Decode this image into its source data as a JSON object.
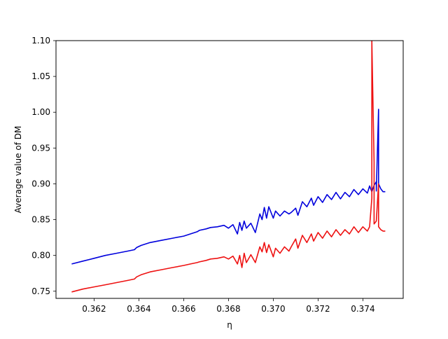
{
  "chart_data": {
    "type": "line",
    "title": "",
    "xlabel": "η",
    "ylabel": "Average value of DM",
    "xlim": [
      0.3603,
      0.3758
    ],
    "ylim": [
      0.74,
      1.1
    ],
    "grid": false,
    "legend": "none",
    "xticks": [
      "0.362",
      "0.364",
      "0.366",
      "0.368",
      "0.370",
      "0.372",
      "0.374"
    ],
    "xtick_values": [
      0.362,
      0.364,
      0.366,
      0.368,
      0.37,
      0.372,
      0.374
    ],
    "yticks": [
      "0.75",
      "0.80",
      "0.85",
      "0.90",
      "0.95",
      "1.00",
      "1.05",
      "1.10"
    ],
    "ytick_values": [
      0.75,
      0.8,
      0.85,
      0.9,
      0.95,
      1.0,
      1.05,
      1.1
    ],
    "series": [
      {
        "color": "#0000dd",
        "x": [
          0.361,
          0.3615,
          0.362,
          0.3625,
          0.363,
          0.3635,
          0.3638,
          0.3639,
          0.3641,
          0.3645,
          0.365,
          0.3655,
          0.366,
          0.3663,
          0.3666,
          0.3667,
          0.367,
          0.3672,
          0.3675,
          0.3678,
          0.368,
          0.3682,
          0.3684,
          0.3685,
          0.3686,
          0.3687,
          0.3688,
          0.369,
          0.3692,
          0.3694,
          0.3695,
          0.3696,
          0.3697,
          0.3698,
          0.37,
          0.3701,
          0.3703,
          0.3705,
          0.3707,
          0.3708,
          0.371,
          0.3711,
          0.3713,
          0.3715,
          0.3717,
          0.3718,
          0.372,
          0.3722,
          0.3724,
          0.3726,
          0.3728,
          0.373,
          0.3732,
          0.3734,
          0.3736,
          0.3738,
          0.374,
          0.3742,
          0.3743,
          0.3744,
          0.3745,
          0.3746,
          0.3746,
          0.3747,
          0.3747,
          0.3748,
          0.3749,
          0.375
        ],
        "y": [
          0.788,
          0.792,
          0.796,
          0.8,
          0.803,
          0.806,
          0.808,
          0.811,
          0.814,
          0.818,
          0.821,
          0.824,
          0.827,
          0.83,
          0.833,
          0.835,
          0.837,
          0.839,
          0.84,
          0.842,
          0.838,
          0.843,
          0.83,
          0.846,
          0.835,
          0.848,
          0.838,
          0.845,
          0.832,
          0.858,
          0.85,
          0.867,
          0.852,
          0.868,
          0.852,
          0.862,
          0.855,
          0.862,
          0.858,
          0.86,
          0.866,
          0.856,
          0.875,
          0.868,
          0.88,
          0.87,
          0.882,
          0.874,
          0.885,
          0.878,
          0.888,
          0.879,
          0.888,
          0.882,
          0.892,
          0.885,
          0.893,
          0.887,
          0.897,
          0.889,
          0.898,
          0.903,
          0.89,
          1.004,
          0.9,
          0.893,
          0.889,
          0.889
        ]
      },
      {
        "color": "#ee1111",
        "x": [
          0.361,
          0.3615,
          0.362,
          0.3625,
          0.363,
          0.3635,
          0.3638,
          0.3639,
          0.3641,
          0.3645,
          0.365,
          0.3655,
          0.366,
          0.3663,
          0.3666,
          0.3667,
          0.367,
          0.3672,
          0.3675,
          0.3678,
          0.368,
          0.3682,
          0.3684,
          0.3685,
          0.3686,
          0.3687,
          0.3688,
          0.369,
          0.3692,
          0.3694,
          0.3695,
          0.3696,
          0.3697,
          0.3698,
          0.37,
          0.3701,
          0.3703,
          0.3705,
          0.3707,
          0.3708,
          0.371,
          0.3711,
          0.3713,
          0.3715,
          0.3717,
          0.3718,
          0.372,
          0.3722,
          0.3724,
          0.3726,
          0.3728,
          0.373,
          0.3732,
          0.3734,
          0.3736,
          0.3738,
          0.374,
          0.3742,
          0.3743,
          0.3744,
          0.3744,
          0.3745,
          0.3745,
          0.3746,
          0.3747,
          0.3747,
          0.3748,
          0.3749,
          0.375
        ],
        "y": [
          0.749,
          0.753,
          0.756,
          0.759,
          0.762,
          0.765,
          0.767,
          0.77,
          0.773,
          0.777,
          0.78,
          0.783,
          0.786,
          0.788,
          0.79,
          0.791,
          0.793,
          0.795,
          0.796,
          0.798,
          0.795,
          0.799,
          0.788,
          0.8,
          0.783,
          0.803,
          0.79,
          0.801,
          0.79,
          0.812,
          0.805,
          0.818,
          0.804,
          0.815,
          0.798,
          0.81,
          0.803,
          0.812,
          0.806,
          0.812,
          0.823,
          0.81,
          0.828,
          0.818,
          0.83,
          0.82,
          0.832,
          0.824,
          0.834,
          0.826,
          0.836,
          0.828,
          0.836,
          0.83,
          0.84,
          0.832,
          0.84,
          0.834,
          0.84,
          0.88,
          1.1,
          0.93,
          0.844,
          0.848,
          0.9,
          0.84,
          0.836,
          0.834,
          0.834
        ]
      }
    ]
  }
}
